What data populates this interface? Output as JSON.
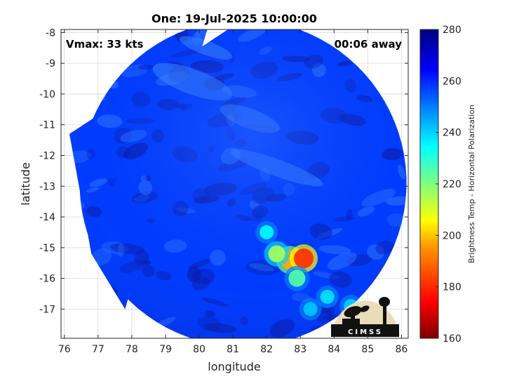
{
  "chart_data": {
    "type": "heatmap",
    "title": "One: 19-Jul-2025 10:00:00",
    "xlabel": "longitude",
    "ylabel": "latitude",
    "xlim": [
      75.9,
      86.2
    ],
    "ylim": [
      -17.95,
      -7.9
    ],
    "x_ticks": [
      76,
      77,
      78,
      79,
      80,
      81,
      82,
      83,
      84,
      85,
      86
    ],
    "y_ticks": [
      -8,
      -9,
      -10,
      -11,
      -12,
      -13,
      -14,
      -15,
      -16,
      -17
    ],
    "grid": true,
    "annotations": {
      "vmax": "Vmax: 33 kts",
      "time_offset": "00:06 away"
    },
    "colorbar": {
      "label": "Brightness Temp - Horizontal Polarization",
      "range": [
        160,
        280
      ],
      "ticks": [
        160,
        180,
        200,
        220,
        240,
        260,
        280
      ],
      "colormap": [
        "#800000",
        "#ff0000",
        "#ff8000",
        "#ffff00",
        "#80ff80",
        "#00ffff",
        "#0080ff",
        "#0000ff",
        "#000080"
      ]
    },
    "swath_center": {
      "lon": 81.3,
      "lat": -12.9
    },
    "background_tb": 258,
    "features": [
      {
        "lon": 82.7,
        "lat": -15.4,
        "tb": 195
      },
      {
        "lon": 83.1,
        "lat": -15.35,
        "tb": 180
      },
      {
        "lon": 82.3,
        "lat": -15.2,
        "tb": 215
      },
      {
        "lon": 82.0,
        "lat": -14.5,
        "tb": 235
      },
      {
        "lon": 82.9,
        "lat": -16.0,
        "tb": 225
      },
      {
        "lon": 83.8,
        "lat": -16.6,
        "tb": 238
      },
      {
        "lon": 84.5,
        "lat": -16.9,
        "tb": 240
      },
      {
        "lon": 83.3,
        "lat": -17.0,
        "tb": 242
      }
    ]
  },
  "logo": {
    "text": "CIMSS",
    "icon": "cimss-logo"
  }
}
